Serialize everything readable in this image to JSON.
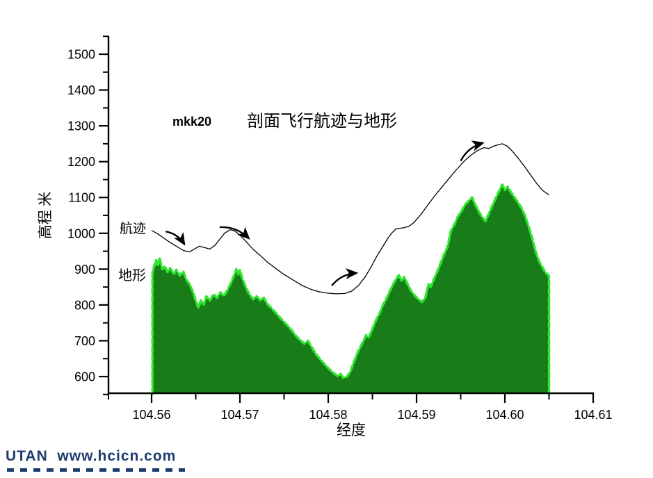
{
  "title": {
    "model": "mkk20",
    "text": "剖面飞行航迹与地形"
  },
  "annotations": {
    "flight_path_label": "航迹",
    "terrain_label": "地形"
  },
  "watermark": {
    "text": "UTAN  www.hcicn.com"
  },
  "colors": {
    "terrain_fill": "#187c18",
    "terrain_edge": "#2ee62e",
    "flight_line": "#000000",
    "axis": "#000000",
    "watermark": "#1d3c6e"
  },
  "chart_data": {
    "type": "area",
    "title": "mkk20 剖面飞行航迹与地形",
    "xlabel": "经度",
    "ylabel": "高程 米",
    "xlim": [
      104.555,
      104.61
    ],
    "ylim": [
      550,
      1550
    ],
    "grid": false,
    "legend_position": "inline-labels",
    "x_major_ticks": [
      104.56,
      104.57,
      104.58,
      104.59,
      104.6,
      104.61
    ],
    "x_tick_labels": [
      "104.56",
      "104.57",
      "104.58",
      "104.59",
      "104.60",
      "104.61"
    ],
    "x_minor_ticks": [
      104.555,
      104.565,
      104.575,
      104.585,
      104.595,
      104.605
    ],
    "y_major_ticks": [
      600,
      700,
      800,
      900,
      1000,
      1100,
      1200,
      1300,
      1400,
      1500
    ],
    "y_minor_ticks": [
      550,
      650,
      750,
      850,
      950,
      1050,
      1150,
      1250,
      1350,
      1450,
      1550
    ],
    "series": [
      {
        "name": "地形",
        "type": "area",
        "fill": "#187c18",
        "edge": "#2ee62e",
        "points": [
          [
            104.5601,
            888
          ],
          [
            104.5603,
            910
          ],
          [
            104.5605,
            925
          ],
          [
            104.5607,
            908
          ],
          [
            104.5609,
            932
          ],
          [
            104.5612,
            900
          ],
          [
            104.5615,
            908
          ],
          [
            104.5618,
            892
          ],
          [
            104.5621,
            903
          ],
          [
            104.5625,
            886
          ],
          [
            104.5628,
            898
          ],
          [
            104.5632,
            882
          ],
          [
            104.5636,
            893
          ],
          [
            104.5639,
            872
          ],
          [
            104.5643,
            858
          ],
          [
            104.5647,
            835
          ],
          [
            104.565,
            812
          ],
          [
            104.5653,
            792
          ],
          [
            104.5656,
            813
          ],
          [
            104.5659,
            801
          ],
          [
            104.5662,
            824
          ],
          [
            104.5666,
            812
          ],
          [
            104.567,
            830
          ],
          [
            104.5674,
            820
          ],
          [
            104.5678,
            835
          ],
          [
            104.5682,
            825
          ],
          [
            104.5686,
            842
          ],
          [
            104.569,
            862
          ],
          [
            104.5693,
            880
          ],
          [
            104.5696,
            900
          ],
          [
            104.5698,
            885
          ],
          [
            104.57,
            897
          ],
          [
            104.5703,
            872
          ],
          [
            104.5707,
            848
          ],
          [
            104.5711,
            828
          ],
          [
            104.5715,
            816
          ],
          [
            104.5719,
            824
          ],
          [
            104.5723,
            813
          ],
          [
            104.5727,
            820
          ],
          [
            104.5731,
            803
          ],
          [
            104.5736,
            790
          ],
          [
            104.5741,
            777
          ],
          [
            104.5747,
            760
          ],
          [
            104.5753,
            745
          ],
          [
            104.5759,
            728
          ],
          [
            104.5764,
            712
          ],
          [
            104.5769,
            700
          ],
          [
            104.5773,
            692
          ],
          [
            104.5777,
            700
          ],
          [
            104.5781,
            683
          ],
          [
            104.5786,
            663
          ],
          [
            104.5791,
            648
          ],
          [
            104.5796,
            634
          ],
          [
            104.5801,
            621
          ],
          [
            104.5806,
            610
          ],
          [
            104.5811,
            601
          ],
          [
            104.5814,
            607
          ],
          [
            104.5817,
            597
          ],
          [
            104.5821,
            599
          ],
          [
            104.5825,
            613
          ],
          [
            104.5829,
            640
          ],
          [
            104.5833,
            665
          ],
          [
            104.5837,
            686
          ],
          [
            104.584,
            700
          ],
          [
            104.5843,
            716
          ],
          [
            104.5846,
            710
          ],
          [
            104.585,
            733
          ],
          [
            104.5854,
            757
          ],
          [
            104.5858,
            776
          ],
          [
            104.5862,
            800
          ],
          [
            104.5866,
            818
          ],
          [
            104.587,
            840
          ],
          [
            104.5874,
            860
          ],
          [
            104.5877,
            873
          ],
          [
            104.588,
            883
          ],
          [
            104.5883,
            868
          ],
          [
            104.5886,
            878
          ],
          [
            104.589,
            857
          ],
          [
            104.5894,
            838
          ],
          [
            104.5898,
            826
          ],
          [
            104.5902,
            816
          ],
          [
            104.5906,
            808
          ],
          [
            104.591,
            820
          ],
          [
            104.5912,
            843
          ],
          [
            104.5914,
            860
          ],
          [
            104.5916,
            850
          ],
          [
            104.5919,
            868
          ],
          [
            104.5923,
            890
          ],
          [
            104.5927,
            915
          ],
          [
            104.5931,
            940
          ],
          [
            104.5935,
            962
          ],
          [
            104.5939,
            1008
          ],
          [
            104.5943,
            1025
          ],
          [
            104.5947,
            1048
          ],
          [
            104.5951,
            1062
          ],
          [
            104.5955,
            1080
          ],
          [
            104.5959,
            1090
          ],
          [
            104.5963,
            1100
          ],
          [
            104.5966,
            1082
          ],
          [
            104.597,
            1063
          ],
          [
            104.5974,
            1046
          ],
          [
            104.5978,
            1034
          ],
          [
            104.5982,
            1055
          ],
          [
            104.5986,
            1078
          ],
          [
            104.599,
            1100
          ],
          [
            104.5994,
            1120
          ],
          [
            104.5997,
            1136
          ],
          [
            104.6,
            1121
          ],
          [
            104.6003,
            1130
          ],
          [
            104.6007,
            1114
          ],
          [
            104.6011,
            1100
          ],
          [
            104.6015,
            1086
          ],
          [
            104.6019,
            1070
          ],
          [
            104.6023,
            1048
          ],
          [
            104.6027,
            1018
          ],
          [
            104.6031,
            985
          ],
          [
            104.6034,
            956
          ],
          [
            104.6037,
            933
          ],
          [
            104.604,
            916
          ],
          [
            104.6043,
            903
          ],
          [
            104.6046,
            890
          ],
          [
            104.6049,
            884
          ],
          [
            104.605,
            880
          ]
        ]
      },
      {
        "name": "航迹",
        "type": "line",
        "color": "#000000",
        "points": [
          [
            104.56,
            1008
          ],
          [
            104.5606,
            1000
          ],
          [
            104.5613,
            988
          ],
          [
            104.562,
            976
          ],
          [
            104.5628,
            964
          ],
          [
            104.5636,
            952
          ],
          [
            104.5643,
            948
          ],
          [
            104.5649,
            957
          ],
          [
            104.5654,
            964
          ],
          [
            104.566,
            960
          ],
          [
            104.5666,
            956
          ],
          [
            104.5672,
            967
          ],
          [
            104.5678,
            986
          ],
          [
            104.5683,
            1001
          ],
          [
            104.5689,
            1010
          ],
          [
            104.5694,
            1007
          ],
          [
            104.57,
            995
          ],
          [
            104.5707,
            977
          ],
          [
            104.5715,
            955
          ],
          [
            104.5723,
            938
          ],
          [
            104.5732,
            918
          ],
          [
            104.5741,
            901
          ],
          [
            104.575,
            885
          ],
          [
            104.576,
            870
          ],
          [
            104.577,
            855
          ],
          [
            104.578,
            844
          ],
          [
            104.5789,
            837
          ],
          [
            104.5799,
            833
          ],
          [
            104.5809,
            831
          ],
          [
            104.5819,
            832
          ],
          [
            104.5827,
            839
          ],
          [
            104.5835,
            856
          ],
          [
            104.5842,
            879
          ],
          [
            104.5849,
            908
          ],
          [
            104.5855,
            936
          ],
          [
            104.5861,
            960
          ],
          [
            104.5867,
            984
          ],
          [
            104.5872,
            1001
          ],
          [
            104.5877,
            1013
          ],
          [
            104.5884,
            1015
          ],
          [
            104.5891,
            1019
          ],
          [
            104.5897,
            1030
          ],
          [
            104.5905,
            1053
          ],
          [
            104.5913,
            1080
          ],
          [
            104.5921,
            1106
          ],
          [
            104.5929,
            1130
          ],
          [
            104.5937,
            1154
          ],
          [
            104.5945,
            1177
          ],
          [
            104.5953,
            1199
          ],
          [
            104.5961,
            1217
          ],
          [
            104.5969,
            1231
          ],
          [
            104.5976,
            1239
          ],
          [
            104.5982,
            1237
          ],
          [
            104.5987,
            1243
          ],
          [
            104.5992,
            1247
          ],
          [
            104.5997,
            1250
          ],
          [
            104.6003,
            1243
          ],
          [
            104.6009,
            1228
          ],
          [
            104.6016,
            1207
          ],
          [
            104.6023,
            1184
          ],
          [
            104.603,
            1160
          ],
          [
            104.6037,
            1136
          ],
          [
            104.6043,
            1119
          ],
          [
            104.605,
            1107
          ]
        ]
      }
    ],
    "direction_arrows": [
      {
        "from": [
          104.5616,
          1005
        ],
        "to": [
          104.5637,
          970
        ]
      },
      {
        "from": [
          104.5677,
          1017
        ],
        "to": [
          104.571,
          986
        ]
      },
      {
        "from": [
          104.5804,
          854
        ],
        "to": [
          104.5832,
          889
        ]
      },
      {
        "from": [
          104.595,
          1202
        ],
        "to": [
          104.5975,
          1252
        ]
      }
    ]
  }
}
